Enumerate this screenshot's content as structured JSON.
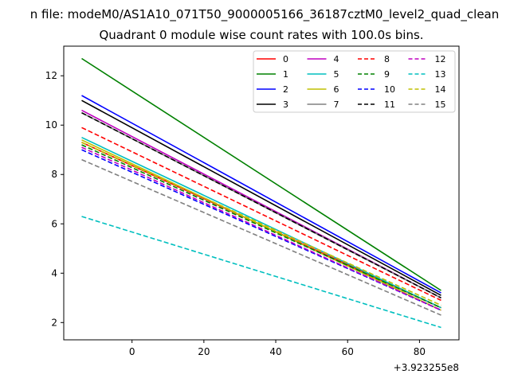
{
  "chart_data": {
    "type": "line",
    "suptitle": "n file: modeM0/AS1A10_071T50_9000005166_36187cztM0_level2_quad_clean",
    "title": "Quadrant 0 module wise count rates with 100.0s bins.",
    "xlabel": "",
    "ylabel": "",
    "x_offset_label": "+3.923255e8",
    "xlim": [
      -19,
      91
    ],
    "ylim": [
      1.3,
      13.2
    ],
    "x_ticks": [
      0,
      20,
      40,
      60,
      80
    ],
    "y_ticks": [
      2,
      4,
      6,
      8,
      10,
      12
    ],
    "grid": false,
    "legend_position": "top-right",
    "legend_columns": 4,
    "series": [
      {
        "name": "0",
        "color": "#ff0000",
        "dash": "solid",
        "x": [
          -14,
          86
        ],
        "y": [
          9.3,
          2.6
        ]
      },
      {
        "name": "1",
        "color": "#008000",
        "dash": "solid",
        "x": [
          -14,
          86
        ],
        "y": [
          12.7,
          3.3
        ]
      },
      {
        "name": "2",
        "color": "#0000ff",
        "dash": "solid",
        "x": [
          -14,
          86
        ],
        "y": [
          11.2,
          3.2
        ]
      },
      {
        "name": "3",
        "color": "#000000",
        "dash": "solid",
        "x": [
          -14,
          86
        ],
        "y": [
          11.0,
          3.1
        ]
      },
      {
        "name": "4",
        "color": "#bf00bf",
        "dash": "solid",
        "x": [
          -14,
          86
        ],
        "y": [
          10.6,
          3.0
        ]
      },
      {
        "name": "5",
        "color": "#00bfbf",
        "dash": "solid",
        "x": [
          -14,
          86
        ],
        "y": [
          9.5,
          2.6
        ]
      },
      {
        "name": "6",
        "color": "#bfbf00",
        "dash": "solid",
        "x": [
          -14,
          86
        ],
        "y": [
          9.4,
          2.5
        ]
      },
      {
        "name": "7",
        "color": "#808080",
        "dash": "solid",
        "x": [
          -14,
          86
        ],
        "y": [
          10.5,
          3.0
        ]
      },
      {
        "name": "8",
        "color": "#ff0000",
        "dash": "dashed",
        "x": [
          -14,
          86
        ],
        "y": [
          9.9,
          2.9
        ]
      },
      {
        "name": "9",
        "color": "#008000",
        "dash": "dashed",
        "x": [
          -14,
          86
        ],
        "y": [
          9.2,
          2.6
        ]
      },
      {
        "name": "10",
        "color": "#0000ff",
        "dash": "dashed",
        "x": [
          -14,
          86
        ],
        "y": [
          9.0,
          2.5
        ]
      },
      {
        "name": "11",
        "color": "#000000",
        "dash": "dashed",
        "x": [
          -14,
          86
        ],
        "y": [
          10.5,
          3.0
        ]
      },
      {
        "name": "12",
        "color": "#bf00bf",
        "dash": "dashed",
        "x": [
          -14,
          86
        ],
        "y": [
          9.1,
          2.5
        ]
      },
      {
        "name": "13",
        "color": "#00bfbf",
        "dash": "dashed",
        "x": [
          -14,
          86
        ],
        "y": [
          6.3,
          1.8
        ]
      },
      {
        "name": "14",
        "color": "#bfbf00",
        "dash": "dashed",
        "x": [
          -14,
          86
        ],
        "y": [
          9.3,
          2.7
        ]
      },
      {
        "name": "15",
        "color": "#808080",
        "dash": "dashed",
        "x": [
          -14,
          86
        ],
        "y": [
          8.6,
          2.3
        ]
      }
    ]
  }
}
